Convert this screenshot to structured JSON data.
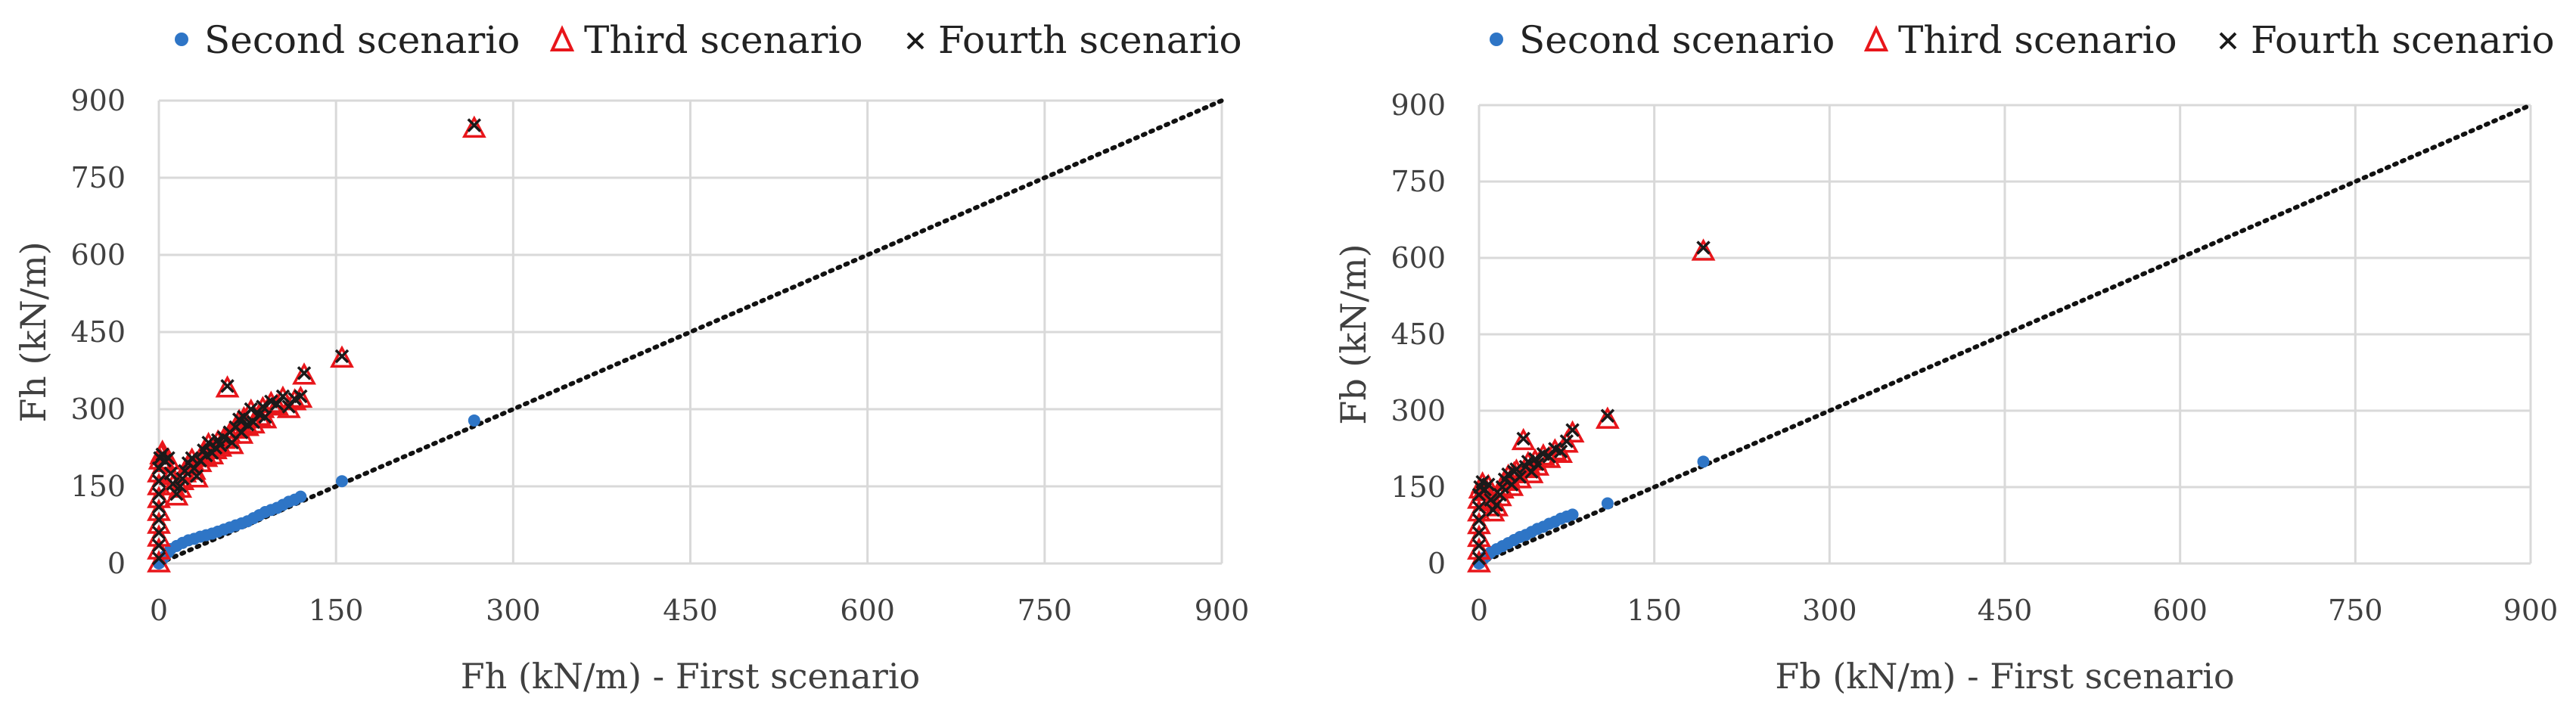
{
  "colors": {
    "second": "#2e75c6",
    "third": "#e8161b",
    "fourth": "#1a1a1a",
    "grid": "#d9d9d9",
    "identity_line": "#111111"
  },
  "chart_data": [
    {
      "type": "scatter",
      "xlabel": "Fh (kN/m) - First scenario",
      "ylabel": "Fh (kN/m)",
      "xlim": [
        0,
        900
      ],
      "ylim": [
        0,
        900
      ],
      "xticks": [
        "0",
        "150",
        "300",
        "450",
        "600",
        "750",
        "900"
      ],
      "yticks": [
        "0",
        "150",
        "300",
        "450",
        "600",
        "750",
        "900"
      ],
      "grid": true,
      "legend_position": "top",
      "reference_line": {
        "style": "dotted",
        "from": [
          0,
          0
        ],
        "to": [
          900,
          900
        ]
      },
      "series": [
        {
          "name": "Second scenario",
          "marker": "circle",
          "points": [
            [
              0,
              0
            ],
            [
              1,
              2
            ],
            [
              2,
              5
            ],
            [
              3,
              8
            ],
            [
              5,
              14
            ],
            [
              8,
              22
            ],
            [
              10,
              28
            ],
            [
              15,
              34
            ],
            [
              20,
              40
            ],
            [
              25,
              45
            ],
            [
              30,
              48
            ],
            [
              35,
              52
            ],
            [
              40,
              55
            ],
            [
              45,
              58
            ],
            [
              50,
              62
            ],
            [
              55,
              66
            ],
            [
              60,
              70
            ],
            [
              65,
              74
            ],
            [
              70,
              78
            ],
            [
              75,
              82
            ],
            [
              80,
              88
            ],
            [
              85,
              94
            ],
            [
              90,
              100
            ],
            [
              95,
              104
            ],
            [
              100,
              108
            ],
            [
              105,
              114
            ],
            [
              110,
              120
            ],
            [
              115,
              124
            ],
            [
              120,
              130
            ],
            [
              155,
              160
            ],
            [
              267,
              278
            ]
          ]
        },
        {
          "name": "Third scenario",
          "marker": "triangle-open",
          "points": [
            [
              0,
              0
            ],
            [
              0,
              25
            ],
            [
              0,
              50
            ],
            [
              0,
              75
            ],
            [
              0,
              100
            ],
            [
              0,
              125
            ],
            [
              0,
              150
            ],
            [
              0,
              175
            ],
            [
              1,
              200
            ],
            [
              2,
              210
            ],
            [
              3,
              215
            ],
            [
              5,
              195
            ],
            [
              8,
              200
            ],
            [
              10,
              170
            ],
            [
              12,
              150
            ],
            [
              15,
              130
            ],
            [
              18,
              145
            ],
            [
              20,
              160
            ],
            [
              22,
              175
            ],
            [
              25,
              190
            ],
            [
              28,
              200
            ],
            [
              30,
              180
            ],
            [
              32,
              165
            ],
            [
              35,
              195
            ],
            [
              38,
              215
            ],
            [
              40,
              205
            ],
            [
              42,
              230
            ],
            [
              45,
              210
            ],
            [
              48,
              220
            ],
            [
              50,
              235
            ],
            [
              52,
              225
            ],
            [
              55,
              240
            ],
            [
              58,
              340
            ],
            [
              60,
              250
            ],
            [
              62,
              230
            ],
            [
              65,
              260
            ],
            [
              68,
              275
            ],
            [
              70,
              250
            ],
            [
              72,
              280
            ],
            [
              75,
              265
            ],
            [
              78,
              295
            ],
            [
              80,
              270
            ],
            [
              85,
              285
            ],
            [
              88,
              300
            ],
            [
              90,
              280
            ],
            [
              95,
              310
            ],
            [
              100,
              305
            ],
            [
              105,
              320
            ],
            [
              110,
              300
            ],
            [
              115,
              315
            ],
            [
              120,
              320
            ],
            [
              123,
              365
            ],
            [
              155,
              398
            ],
            [
              267,
              845
            ]
          ]
        },
        {
          "name": "Fourth scenario",
          "marker": "x",
          "points": [
            [
              0,
              10
            ],
            [
              0,
              35
            ],
            [
              0,
              60
            ],
            [
              0,
              85
            ],
            [
              0,
              110
            ],
            [
              0,
              135
            ],
            [
              0,
              160
            ],
            [
              0,
              185
            ],
            [
              1,
              205
            ],
            [
              3,
              212
            ],
            [
              5,
              200
            ],
            [
              8,
              205
            ],
            [
              10,
              175
            ],
            [
              12,
              155
            ],
            [
              15,
              135
            ],
            [
              18,
              150
            ],
            [
              20,
              165
            ],
            [
              22,
              180
            ],
            [
              25,
              195
            ],
            [
              28,
              205
            ],
            [
              30,
              185
            ],
            [
              32,
              170
            ],
            [
              35,
              200
            ],
            [
              38,
              220
            ],
            [
              40,
              210
            ],
            [
              42,
              235
            ],
            [
              45,
              215
            ],
            [
              48,
              225
            ],
            [
              50,
              240
            ],
            [
              52,
              230
            ],
            [
              55,
              245
            ],
            [
              58,
              345
            ],
            [
              60,
              255
            ],
            [
              62,
              235
            ],
            [
              65,
              265
            ],
            [
              68,
              280
            ],
            [
              70,
              255
            ],
            [
              72,
              285
            ],
            [
              75,
              270
            ],
            [
              78,
              300
            ],
            [
              80,
              275
            ],
            [
              85,
              290
            ],
            [
              88,
              305
            ],
            [
              90,
              285
            ],
            [
              95,
              315
            ],
            [
              100,
              310
            ],
            [
              105,
              325
            ],
            [
              110,
              305
            ],
            [
              115,
              320
            ],
            [
              120,
              325
            ],
            [
              123,
              370
            ],
            [
              155,
              403
            ],
            [
              267,
              852
            ]
          ]
        }
      ]
    },
    {
      "type": "scatter",
      "xlabel": "Fb (kN/m) - First scenario",
      "ylabel": "Fb (kN/m)",
      "xlim": [
        0,
        900
      ],
      "ylim": [
        0,
        900
      ],
      "xticks": [
        "0",
        "150",
        "300",
        "450",
        "600",
        "750",
        "900"
      ],
      "yticks": [
        "0",
        "150",
        "300",
        "450",
        "600",
        "750",
        "900"
      ],
      "grid": true,
      "legend_position": "top",
      "reference_line": {
        "style": "dotted",
        "from": [
          0,
          0
        ],
        "to": [
          900,
          900
        ]
      },
      "series": [
        {
          "name": "Second scenario",
          "marker": "circle",
          "points": [
            [
              0,
              0
            ],
            [
              1,
              2
            ],
            [
              2,
              4
            ],
            [
              3,
              7
            ],
            [
              5,
              12
            ],
            [
              8,
              18
            ],
            [
              10,
              22
            ],
            [
              15,
              28
            ],
            [
              20,
              34
            ],
            [
              25,
              40
            ],
            [
              30,
              46
            ],
            [
              35,
              52
            ],
            [
              40,
              56
            ],
            [
              45,
              62
            ],
            [
              50,
              68
            ],
            [
              55,
              72
            ],
            [
              60,
              78
            ],
            [
              65,
              82
            ],
            [
              70,
              88
            ],
            [
              75,
              92
            ],
            [
              80,
              96
            ],
            [
              110,
              118
            ],
            [
              192,
              200
            ]
          ]
        },
        {
          "name": "Third scenario",
          "marker": "triangle-open",
          "points": [
            [
              0,
              0
            ],
            [
              0,
              25
            ],
            [
              0,
              50
            ],
            [
              0,
              75
            ],
            [
              0,
              100
            ],
            [
              0,
              125
            ],
            [
              1,
              145
            ],
            [
              3,
              155
            ],
            [
              5,
              140
            ],
            [
              8,
              150
            ],
            [
              10,
              120
            ],
            [
              12,
              100
            ],
            [
              15,
              110
            ],
            [
              18,
              130
            ],
            [
              20,
              145
            ],
            [
              22,
              160
            ],
            [
              25,
              170
            ],
            [
              28,
              150
            ],
            [
              30,
              175
            ],
            [
              32,
              180
            ],
            [
              35,
              165
            ],
            [
              38,
              240
            ],
            [
              40,
              185
            ],
            [
              42,
              195
            ],
            [
              45,
              175
            ],
            [
              48,
              200
            ],
            [
              50,
              190
            ],
            [
              55,
              210
            ],
            [
              60,
              205
            ],
            [
              65,
              220
            ],
            [
              70,
              215
            ],
            [
              75,
              235
            ],
            [
              80,
              255
            ],
            [
              110,
              282
            ],
            [
              192,
              612
            ]
          ]
        },
        {
          "name": "Fourth scenario",
          "marker": "x",
          "points": [
            [
              0,
              10
            ],
            [
              0,
              35
            ],
            [
              0,
              60
            ],
            [
              0,
              85
            ],
            [
              0,
              110
            ],
            [
              0,
              135
            ],
            [
              1,
              150
            ],
            [
              3,
              160
            ],
            [
              5,
              145
            ],
            [
              8,
              155
            ],
            [
              10,
              125
            ],
            [
              12,
              105
            ],
            [
              15,
              115
            ],
            [
              18,
              135
            ],
            [
              20,
              150
            ],
            [
              22,
              165
            ],
            [
              25,
              175
            ],
            [
              28,
              155
            ],
            [
              30,
              180
            ],
            [
              32,
              185
            ],
            [
              35,
              170
            ],
            [
              38,
              245
            ],
            [
              40,
              190
            ],
            [
              42,
              200
            ],
            [
              45,
              180
            ],
            [
              48,
              205
            ],
            [
              50,
              195
            ],
            [
              55,
              215
            ],
            [
              60,
              210
            ],
            [
              65,
              225
            ],
            [
              70,
              220
            ],
            [
              75,
              240
            ],
            [
              80,
              262
            ],
            [
              110,
              290
            ],
            [
              192,
              620
            ]
          ]
        }
      ]
    }
  ]
}
